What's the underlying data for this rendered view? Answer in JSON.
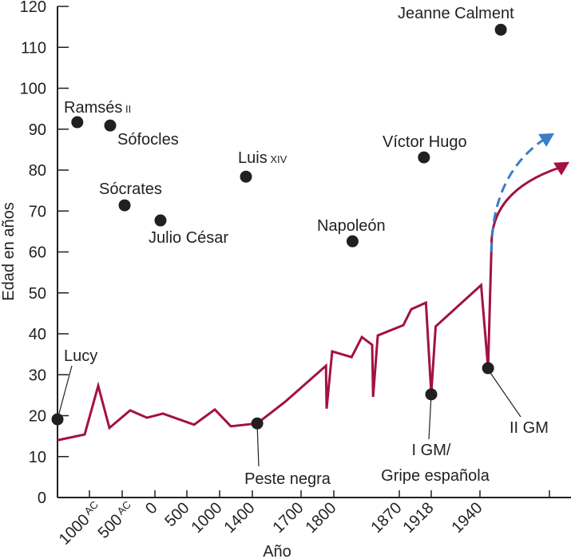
{
  "chart_data": {
    "type": "line",
    "title": "",
    "xlabel": "Año",
    "ylabel": "Edad en años",
    "ylim": [
      0,
      120
    ],
    "yticks": [
      0,
      10,
      20,
      30,
      40,
      50,
      60,
      70,
      80,
      90,
      100,
      110,
      120
    ],
    "xticks": [
      {
        "year": -1000,
        "label": "1000",
        "suffix": "AC"
      },
      {
        "year": -500,
        "label": "500",
        "suffix": "AC"
      },
      {
        "year": 0,
        "label": "0",
        "suffix": ""
      },
      {
        "year": 500,
        "label": "500",
        "suffix": ""
      },
      {
        "year": 1000,
        "label": "1000",
        "suffix": ""
      },
      {
        "year": 1400,
        "label": "1400",
        "suffix": ""
      },
      {
        "year": 1700,
        "label": "1700",
        "suffix": ""
      },
      {
        "year": 1800,
        "label": "1800",
        "suffix": ""
      },
      {
        "year": 1870,
        "label": "1870",
        "suffix": ""
      },
      {
        "year": 1918,
        "label": "1918",
        "suffix": ""
      },
      {
        "year": 1940,
        "label": "1940",
        "suffix": ""
      },
      {
        "year": 2000,
        "label": "",
        "suffix": ""
      }
    ],
    "grid": false,
    "colors": {
      "line": "#a3123f",
      "projection": "#3a7dc9",
      "points": "#231f20"
    },
    "series": [
      {
        "x": [
          -1500,
          -1075,
          -866,
          -695,
          -378,
          -122,
          125,
          610,
          927,
          1137,
          1430,
          1602,
          1776,
          1778,
          1795,
          1819,
          1830,
          1841,
          1842,
          1847,
          1876,
          1888,
          1910,
          1918,
          1920,
          1941,
          1947,
          1950
        ],
        "y": [
          14,
          15.4,
          27.3,
          17,
          21.3,
          19.5,
          20.5,
          17.8,
          21.5,
          17.4,
          18.1,
          23.4,
          32.2,
          21.7,
          35.7,
          34.3,
          39.2,
          37.3,
          24.6,
          39.6,
          42.1,
          46,
          47.6,
          25.4,
          41.8,
          51.9,
          31.6,
          62
        ]
      }
    ],
    "projections": [
      {
        "style": "solid",
        "from": [
          1950,
          62
        ],
        "to": [
          2020,
          82
        ]
      },
      {
        "style": "dashed",
        "from": [
          1950,
          60
        ],
        "to": [
          2006,
          89
        ]
      }
    ],
    "points": [
      {
        "name": "Lucy",
        "suffix": "",
        "x": -1500,
        "y": 19.1
      },
      {
        "name": "Ramsés",
        "suffix": "II",
        "x": -1190,
        "y": 91.7
      },
      {
        "name": "Sófocles",
        "suffix": "",
        "x": -683,
        "y": 90.9
      },
      {
        "name": "Sócrates",
        "suffix": "",
        "x": -463,
        "y": 71.4
      },
      {
        "name": "Julio César",
        "suffix": "",
        "x": 87,
        "y": 67.7
      },
      {
        "name": "Luis",
        "suffix": "XIV",
        "x": 1322,
        "y": 78.4
      },
      {
        "name": "Peste negra",
        "suffix": "",
        "x": 1430,
        "y": 18.1
      },
      {
        "name": "Napoleón",
        "suffix": "",
        "x": 1820,
        "y": 62.6
      },
      {
        "name": "Víctor Hugo",
        "suffix": "",
        "x": 1907,
        "y": 83.1
      },
      {
        "name": "I GM/",
        "suffix": "Gripe española",
        "x": 1918,
        "y": 25.2
      },
      {
        "name": "II GM",
        "suffix": "",
        "x": 1947,
        "y": 31.6
      },
      {
        "name": "Jeanne Calment",
        "suffix": "",
        "x": 1958,
        "y": 114.3
      }
    ]
  }
}
